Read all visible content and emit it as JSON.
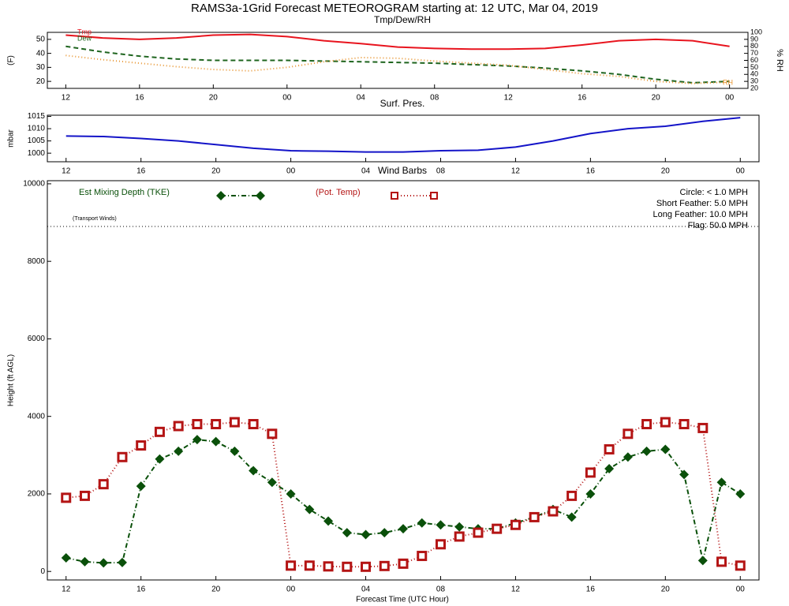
{
  "header": {
    "title": "RAMS3a-1Grid Forecast METEOROGRAM starting at:  12 UTC, Mar 04, 2019"
  },
  "chart_data": [
    {
      "type": "line",
      "title": "Tmp/Dew/RH",
      "y_label": "(F)",
      "y2_label": "% RH",
      "x": [
        0,
        2,
        4,
        6,
        8,
        10,
        12,
        14,
        16,
        18,
        20,
        22,
        24,
        26,
        28,
        30,
        32,
        34,
        36
      ],
      "xlim": [
        -1,
        37
      ],
      "xticks": [
        {
          "value": 0,
          "label": "12"
        },
        {
          "value": 4,
          "label": "16"
        },
        {
          "value": 8,
          "label": "20"
        },
        {
          "value": 12,
          "label": "00"
        },
        {
          "value": 16,
          "label": "04"
        },
        {
          "value": 20,
          "label": "08"
        },
        {
          "value": 24,
          "label": "12"
        },
        {
          "value": 28,
          "label": "16"
        },
        {
          "value": 32,
          "label": "20"
        },
        {
          "value": 36,
          "label": "00"
        }
      ],
      "ylim": [
        15,
        55
      ],
      "yticks": [
        20,
        30,
        40,
        50
      ],
      "y2lim": [
        20,
        100
      ],
      "y2ticks": [
        20,
        30,
        40,
        50,
        60,
        70,
        80,
        90,
        100
      ],
      "series": [
        {
          "name": "Tmp",
          "color": "#e8141e",
          "style": "solid",
          "values": [
            53,
            51,
            50,
            51,
            53,
            53.5,
            52,
            49,
            47,
            44.5,
            43.5,
            43,
            43,
            43.5,
            46,
            49,
            50,
            49,
            45
          ]
        },
        {
          "name": "Dew",
          "color": "#1e641e",
          "style": "dashed",
          "values": [
            45,
            41,
            38,
            36,
            35,
            35,
            35,
            34.5,
            34,
            33.5,
            33,
            32,
            31,
            29.5,
            27.5,
            25,
            21.5,
            19,
            20
          ]
        },
        {
          "name": "RH",
          "color": "#e89632",
          "style": "dotted",
          "axis": "y2",
          "values": [
            67,
            61,
            56,
            51,
            47,
            45,
            50,
            58,
            64,
            63,
            59,
            56,
            53,
            47,
            41,
            37,
            30,
            27,
            29
          ]
        }
      ]
    },
    {
      "type": "line",
      "title": "Surf. Pres.",
      "y_label": "mbar",
      "x": [
        0,
        2,
        4,
        6,
        8,
        10,
        12,
        14,
        16,
        18,
        20,
        22,
        24,
        26,
        28,
        30,
        32,
        34,
        36
      ],
      "xlim": [
        -1,
        37
      ],
      "xticks": [
        {
          "value": 0,
          "label": "12"
        },
        {
          "value": 4,
          "label": "16"
        },
        {
          "value": 8,
          "label": "20"
        },
        {
          "value": 12,
          "label": "00"
        },
        {
          "value": 16,
          "label": "04"
        },
        {
          "value": 20,
          "label": "08"
        },
        {
          "value": 24,
          "label": "12"
        },
        {
          "value": 28,
          "label": "16"
        },
        {
          "value": 32,
          "label": "20"
        },
        {
          "value": 36,
          "label": "00"
        }
      ],
      "ylim": [
        996.5,
        1015.5
      ],
      "yticks": [
        1000,
        1005,
        1010,
        1015
      ],
      "series": [
        {
          "name": "Surf. Pres.",
          "color": "#1414c8",
          "style": "solid",
          "values": [
            1007,
            1006.8,
            1006,
            1005,
            1003.5,
            1002,
            1001,
            1000.8,
            1000.5,
            1000.5,
            1001,
            1001.2,
            1002.5,
            1005,
            1008,
            1010,
            1011,
            1013,
            1014.5
          ]
        }
      ]
    },
    {
      "type": "line",
      "title": "Wind Barbs",
      "y_label": "Height (ft AGL)",
      "x_label": "Forecast Time (UTC Hour)",
      "notes": [
        "Circle:  < 1.0 MPH",
        "Short Feather:  5.0 MPH",
        "Long Feather:  10.0 MPH",
        "Flag:  50.0 MPH",
        "(Transport Winds)"
      ],
      "x": [
        0,
        1,
        2,
        3,
        4,
        5,
        6,
        7,
        8,
        9,
        10,
        11,
        12,
        13,
        14,
        15,
        16,
        17,
        18,
        19,
        20,
        21,
        22,
        23,
        24,
        25,
        26,
        27,
        28,
        29,
        30,
        31,
        32,
        33,
        34,
        35,
        36
      ],
      "xlim": [
        -1,
        37
      ],
      "xticks": [
        {
          "value": 0,
          "label": "12"
        },
        {
          "value": 4,
          "label": "16"
        },
        {
          "value": 8,
          "label": "20"
        },
        {
          "value": 12,
          "label": "00"
        },
        {
          "value": 16,
          "label": "04"
        },
        {
          "value": 20,
          "label": "08"
        },
        {
          "value": 24,
          "label": "12"
        },
        {
          "value": 28,
          "label": "16"
        },
        {
          "value": 32,
          "label": "20"
        },
        {
          "value": 36,
          "label": "00"
        }
      ],
      "ylim": [
        -220,
        10080
      ],
      "yticks": [
        0,
        2000,
        4000,
        6000,
        8000,
        10000
      ],
      "series": [
        {
          "name": "Est Mixing Depth (TKE)",
          "color": "#0a500a",
          "style": "dashdot",
          "marker": "diamond",
          "values": [
            350,
            250,
            220,
            230,
            2200,
            2900,
            3100,
            3400,
            3350,
            3100,
            2600,
            2300,
            2000,
            1600,
            1300,
            1000,
            950,
            1000,
            1100,
            1250,
            1200,
            1150,
            1100,
            1100,
            1250,
            1400,
            1600,
            1400,
            2000,
            2650,
            2950,
            3100,
            3150,
            2500,
            280,
            2300,
            2000
          ]
        },
        {
          "name": "(Pot. Temp)",
          "color": "#b41414",
          "style": "dotted",
          "marker": "square",
          "values": [
            1900,
            1950,
            2250,
            2950,
            3250,
            3600,
            3750,
            3800,
            3800,
            3850,
            3800,
            3550,
            150,
            150,
            130,
            120,
            120,
            140,
            200,
            400,
            700,
            900,
            1000,
            1100,
            1200,
            1400,
            1550,
            1950,
            2550,
            3150,
            3550,
            3800,
            3850,
            3800,
            3700,
            250,
            150
          ]
        }
      ]
    }
  ]
}
